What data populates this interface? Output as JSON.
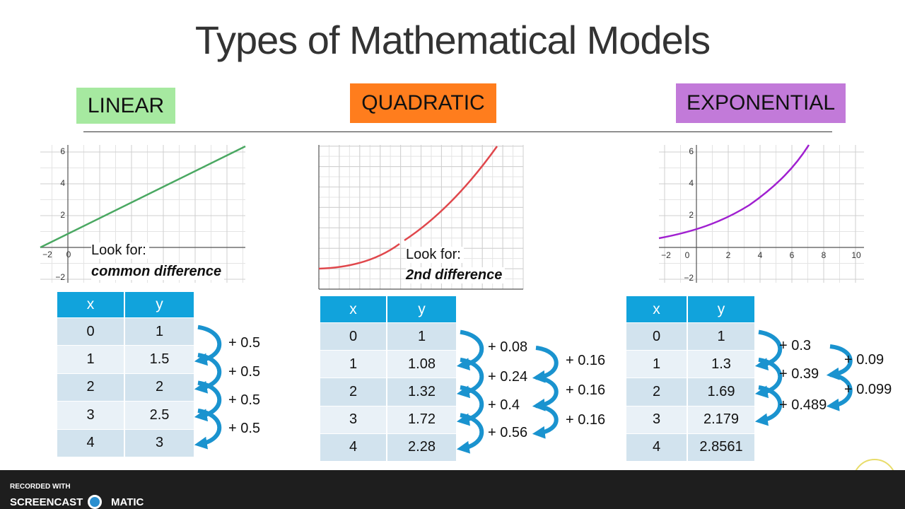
{
  "title": "Types of Mathematical Models",
  "models": [
    {
      "label": "LINEAR",
      "graph": {
        "x_ticks": [
          "−2",
          "0"
        ],
        "y_ticks": [
          "6",
          "4",
          "2",
          "−2"
        ]
      },
      "look_for": "Look for:",
      "hint": "common difference",
      "table": {
        "header": [
          "x",
          "y"
        ],
        "rows": [
          [
            0,
            1
          ],
          [
            1,
            1.5
          ],
          [
            2,
            2
          ],
          [
            3,
            2.5
          ],
          [
            4,
            3
          ]
        ]
      },
      "differences": [
        "+ 0.5",
        "+ 0.5",
        "+ 0.5",
        "+ 0.5"
      ]
    },
    {
      "label": "QUADRATIC",
      "look_for": "Look for:",
      "hint": "2nd difference",
      "table": {
        "header": [
          "x",
          "y"
        ],
        "rows": [
          [
            0,
            1
          ],
          [
            1,
            1.08
          ],
          [
            2,
            1.32
          ],
          [
            3,
            1.72
          ],
          [
            4,
            2.28
          ]
        ]
      },
      "differences": [
        "+ 0.08",
        "+ 0.24",
        "+ 0.4",
        "+ 0.56"
      ],
      "second_differences": [
        "+ 0.16",
        "+ 0.16",
        "+ 0.16"
      ]
    },
    {
      "label": "EXPONENTIAL",
      "graph": {
        "x_ticks": [
          "−2",
          "0",
          "2",
          "4",
          "6",
          "8",
          "10"
        ],
        "y_ticks": [
          "6",
          "4",
          "2",
          "−2"
        ]
      },
      "table": {
        "header": [
          "x",
          "y"
        ],
        "rows": [
          [
            0,
            1
          ],
          [
            1,
            1.3
          ],
          [
            2,
            1.69
          ],
          [
            3,
            2.179
          ],
          [
            4,
            2.8561
          ]
        ]
      },
      "differences": [
        "+ 0.3",
        "+ 0.39",
        "+ 0.489"
      ],
      "second_differences": [
        "+ 0.09",
        "+ 0.099"
      ]
    }
  ],
  "footer": {
    "recorded": "RECORDED WITH",
    "brand_left": "SCREENCAST",
    "brand_right": "MATIC"
  }
}
